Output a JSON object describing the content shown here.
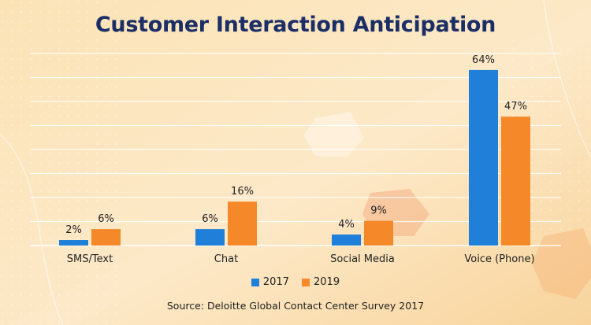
{
  "colors": {
    "series_2017": "#1f7fd9",
    "series_2019": "#f5892a",
    "title": "#1b2f66",
    "background": "#fbe0b0"
  },
  "source": "Source: Deloitte Global Contact Center Survey 2017",
  "chart_data": {
    "type": "bar",
    "title": "Customer Interaction Anticipation",
    "xlabel": "",
    "ylabel": "",
    "ylim": [
      0,
      70
    ],
    "grid": true,
    "legend_position": "bottom-center",
    "categories": [
      "SMS/Text",
      "Chat",
      "Social Media",
      "Voice (Phone)"
    ],
    "series": [
      {
        "name": "2017",
        "values": [
          2,
          6,
          4,
          64
        ],
        "labels": [
          "2%",
          "6%",
          "4%",
          "64%"
        ]
      },
      {
        "name": "2019",
        "values": [
          6,
          16,
          9,
          47
        ],
        "labels": [
          "6%",
          "16%",
          "9%",
          "47%"
        ]
      }
    ]
  }
}
